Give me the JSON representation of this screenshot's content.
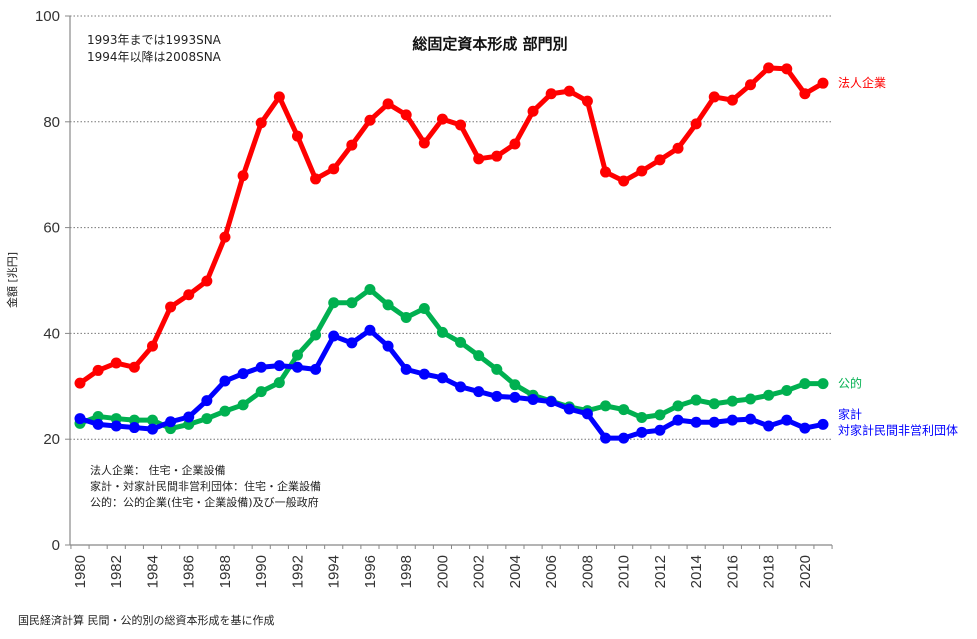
{
  "chart_data": {
    "type": "line",
    "title": "総固定資本形成 部門別",
    "xlabel": "",
    "ylabel": "金額 [兆円]",
    "ylim": [
      0,
      100
    ],
    "yticks": [
      0,
      20,
      40,
      60,
      80,
      100
    ],
    "xlim": [
      1980,
      2021
    ],
    "xticks": [
      1980,
      1982,
      1984,
      1986,
      1988,
      1990,
      1992,
      1994,
      1996,
      1998,
      2000,
      2002,
      2004,
      2006,
      2008,
      2010,
      2012,
      2014,
      2016,
      2018,
      2020
    ],
    "grid": "horizontal dotted",
    "annotations": [
      "1993年までは1993SNA",
      "1994年以降は2008SNA"
    ],
    "notes": [
      "法人企業： 住宅・企業設備",
      "家計・対家計民間非営利団体：住宅・企業設備",
      "公的：公的企業(住宅・企業設備)及び一般政府"
    ],
    "source": "国民経済計算 民間・公的別の総資本形成を基に作成",
    "x": [
      1980,
      1981,
      1982,
      1983,
      1984,
      1985,
      1986,
      1987,
      1988,
      1989,
      1990,
      1991,
      1992,
      1993,
      1994,
      1995,
      1996,
      1997,
      1998,
      1999,
      2000,
      2001,
      2002,
      2003,
      2004,
      2005,
      2006,
      2007,
      2008,
      2009,
      2010,
      2011,
      2012,
      2013,
      2014,
      2015,
      2016,
      2017,
      2018,
      2019,
      2020,
      2021
    ],
    "series": [
      {
        "name": "法人企業",
        "label_lines": [
          "法人企業"
        ],
        "color": "#ff0000",
        "values": [
          30.6,
          33.0,
          34.4,
          33.6,
          37.6,
          45.0,
          47.3,
          49.9,
          58.2,
          69.8,
          79.8,
          84.7,
          77.3,
          69.2,
          71.1,
          75.6,
          80.3,
          83.4,
          81.3,
          76.0,
          80.5,
          79.4,
          73.0,
          73.5,
          75.8,
          82.0,
          85.3,
          85.8,
          83.9,
          70.5,
          68.8,
          70.7,
          72.8,
          75.0,
          79.6,
          84.7,
          84.1,
          87.0,
          90.2,
          90.0,
          85.3,
          87.3
        ]
      },
      {
        "name": "公的",
        "label_lines": [
          "公的"
        ],
        "color": "#00b050",
        "values": [
          23.0,
          24.3,
          23.9,
          23.6,
          23.6,
          22.0,
          22.8,
          23.9,
          25.3,
          26.5,
          29.0,
          30.7,
          35.9,
          39.7,
          45.8,
          45.8,
          48.3,
          45.4,
          43.0,
          44.7,
          40.2,
          38.3,
          35.8,
          33.2,
          30.3,
          28.3,
          27.2,
          26.1,
          25.4,
          26.3,
          25.6,
          24.1,
          24.6,
          26.3,
          27.4,
          26.7,
          27.2,
          27.6,
          28.3,
          29.2,
          30.5,
          30.5
        ]
      },
      {
        "name": "家計・対家計民間非営利団体",
        "label_lines": [
          "家計",
          "対家計民間非営利団体"
        ],
        "color": "#0000ff",
        "values": [
          23.9,
          22.8,
          22.5,
          22.2,
          21.9,
          23.3,
          24.2,
          27.3,
          31.0,
          32.4,
          33.6,
          33.9,
          33.6,
          33.2,
          39.5,
          38.2,
          40.6,
          37.6,
          33.2,
          32.3,
          31.6,
          29.9,
          29.0,
          28.1,
          27.9,
          27.5,
          27.1,
          25.7,
          24.8,
          20.2,
          20.2,
          21.3,
          21.7,
          23.6,
          23.2,
          23.2,
          23.6,
          23.8,
          22.5,
          23.6,
          22.1,
          22.8
        ]
      }
    ]
  }
}
